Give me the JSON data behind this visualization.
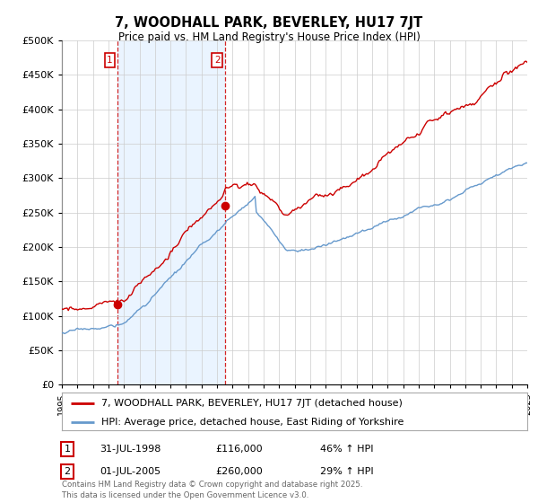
{
  "title": "7, WOODHALL PARK, BEVERLEY, HU17 7JT",
  "subtitle": "Price paid vs. HM Land Registry's House Price Index (HPI)",
  "legend_line1": "7, WOODHALL PARK, BEVERLEY, HU17 7JT (detached house)",
  "legend_line2": "HPI: Average price, detached house, East Riding of Yorkshire",
  "annotation1_label": "1",
  "annotation1_date": "31-JUL-1998",
  "annotation1_price": "£116,000",
  "annotation1_hpi": "46% ↑ HPI",
  "annotation2_label": "2",
  "annotation2_date": "01-JUL-2005",
  "annotation2_price": "£260,000",
  "annotation2_hpi": "29% ↑ HPI",
  "footnote": "Contains HM Land Registry data © Crown copyright and database right 2025.\nThis data is licensed under the Open Government Licence v3.0.",
  "red_color": "#cc0000",
  "blue_color": "#6699cc",
  "blue_fill": "#ddeeff",
  "grid_color": "#cccccc",
  "background_color": "#ffffff",
  "ylim": [
    0,
    500000
  ],
  "yticks": [
    0,
    50000,
    100000,
    150000,
    200000,
    250000,
    300000,
    350000,
    400000,
    450000,
    500000
  ],
  "start_year": 1995,
  "end_year": 2025,
  "purchase1_year": 1998.58,
  "purchase1_price": 116000,
  "purchase2_year": 2005.5,
  "purchase2_price": 260000
}
